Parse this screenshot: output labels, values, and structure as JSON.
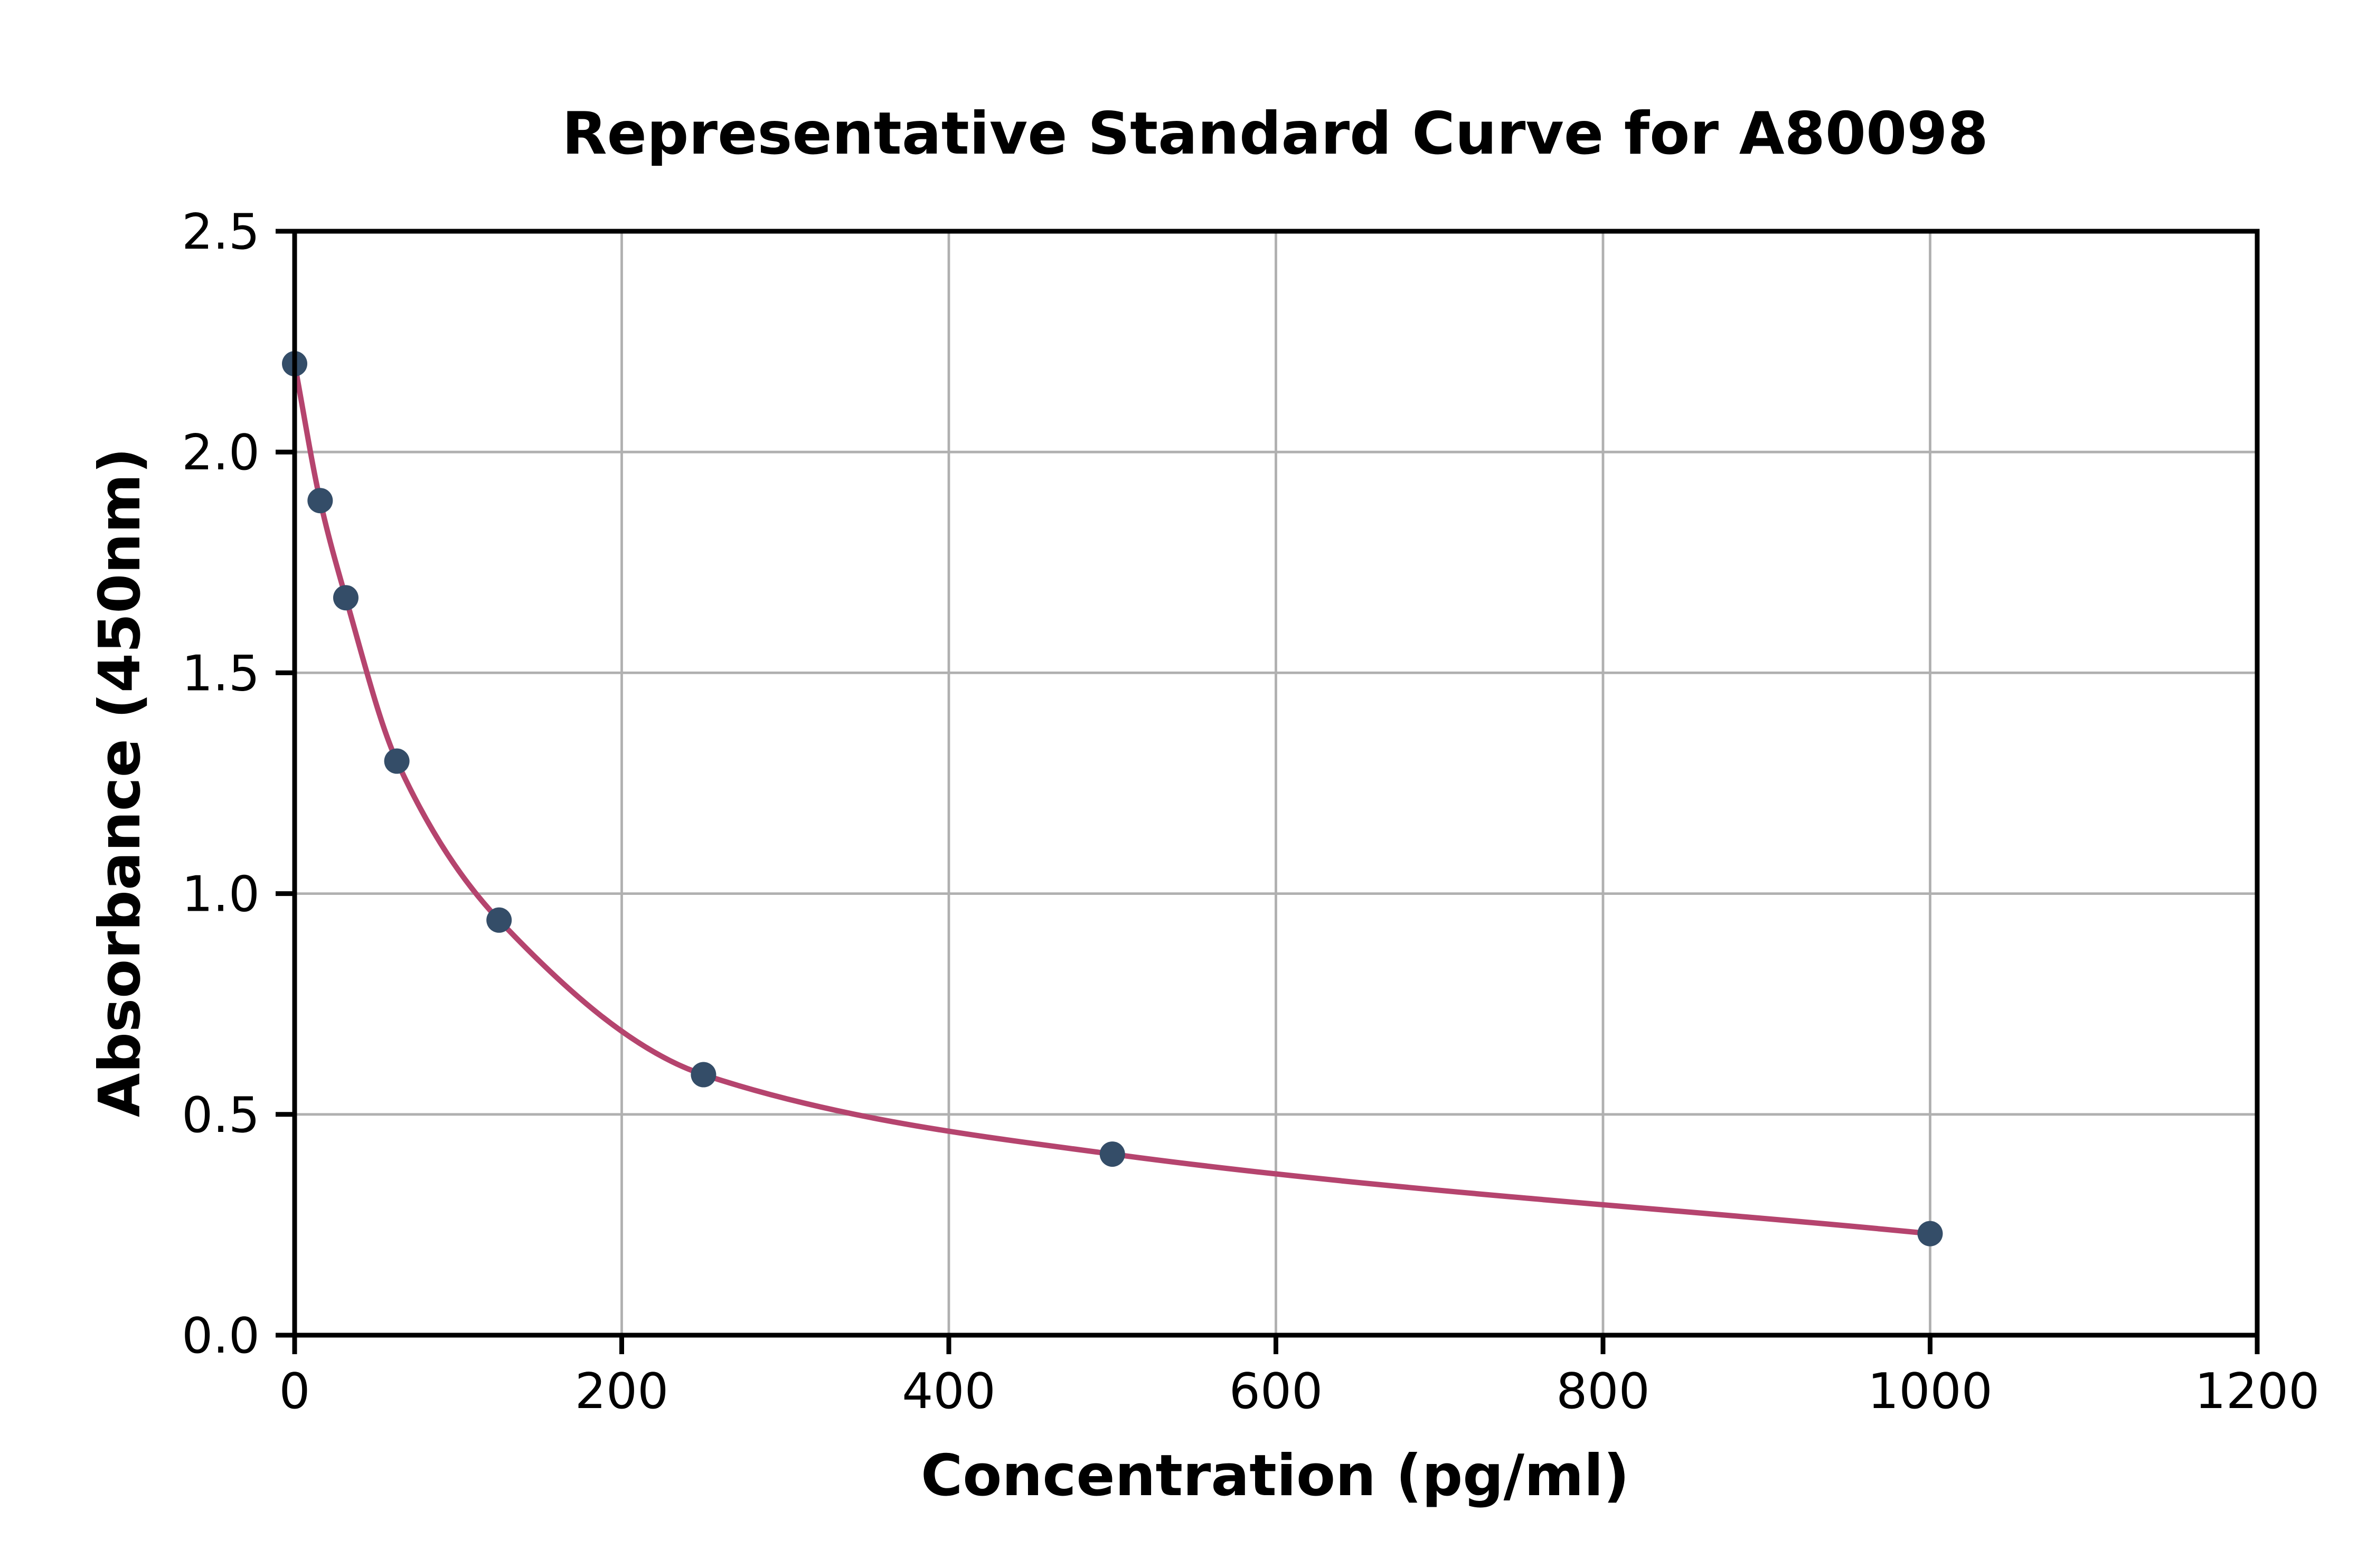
{
  "chart_data": {
    "type": "scatter",
    "title": "Representative Standard Curve for A80098",
    "xlabel": "Concentration (pg/ml)",
    "ylabel": "Absorbance (450nm)",
    "xlim": [
      0,
      1200
    ],
    "ylim": [
      0,
      2.5
    ],
    "x_ticks": [
      0,
      200,
      400,
      600,
      800,
      1000,
      1200
    ],
    "x_tick_labels": [
      "0",
      "200",
      "400",
      "600",
      "800",
      "1000",
      "1200"
    ],
    "y_ticks": [
      0,
      0.5,
      1,
      1.5,
      2,
      2.5
    ],
    "y_tick_labels": [
      "0.0",
      "0.5",
      "1.0",
      "1.5",
      "2.0",
      "2.5"
    ],
    "grid": true,
    "legend_position": "none",
    "series": [
      {
        "name": "standard-points",
        "type": "scatter",
        "color": "#344d68",
        "x": [
          0,
          15.6,
          31.3,
          62.5,
          125,
          250,
          500,
          1000
        ],
        "y": [
          2.2,
          1.89,
          1.67,
          1.3,
          0.94,
          0.59,
          0.41,
          0.23
        ]
      },
      {
        "name": "fitted-curve",
        "type": "line",
        "color": "#b5446e",
        "through_series": "standard-points"
      }
    ],
    "colors": {
      "grid": "#b0b0b0",
      "axis": "#000000",
      "text": "#000000",
      "background": "#ffffff"
    }
  }
}
